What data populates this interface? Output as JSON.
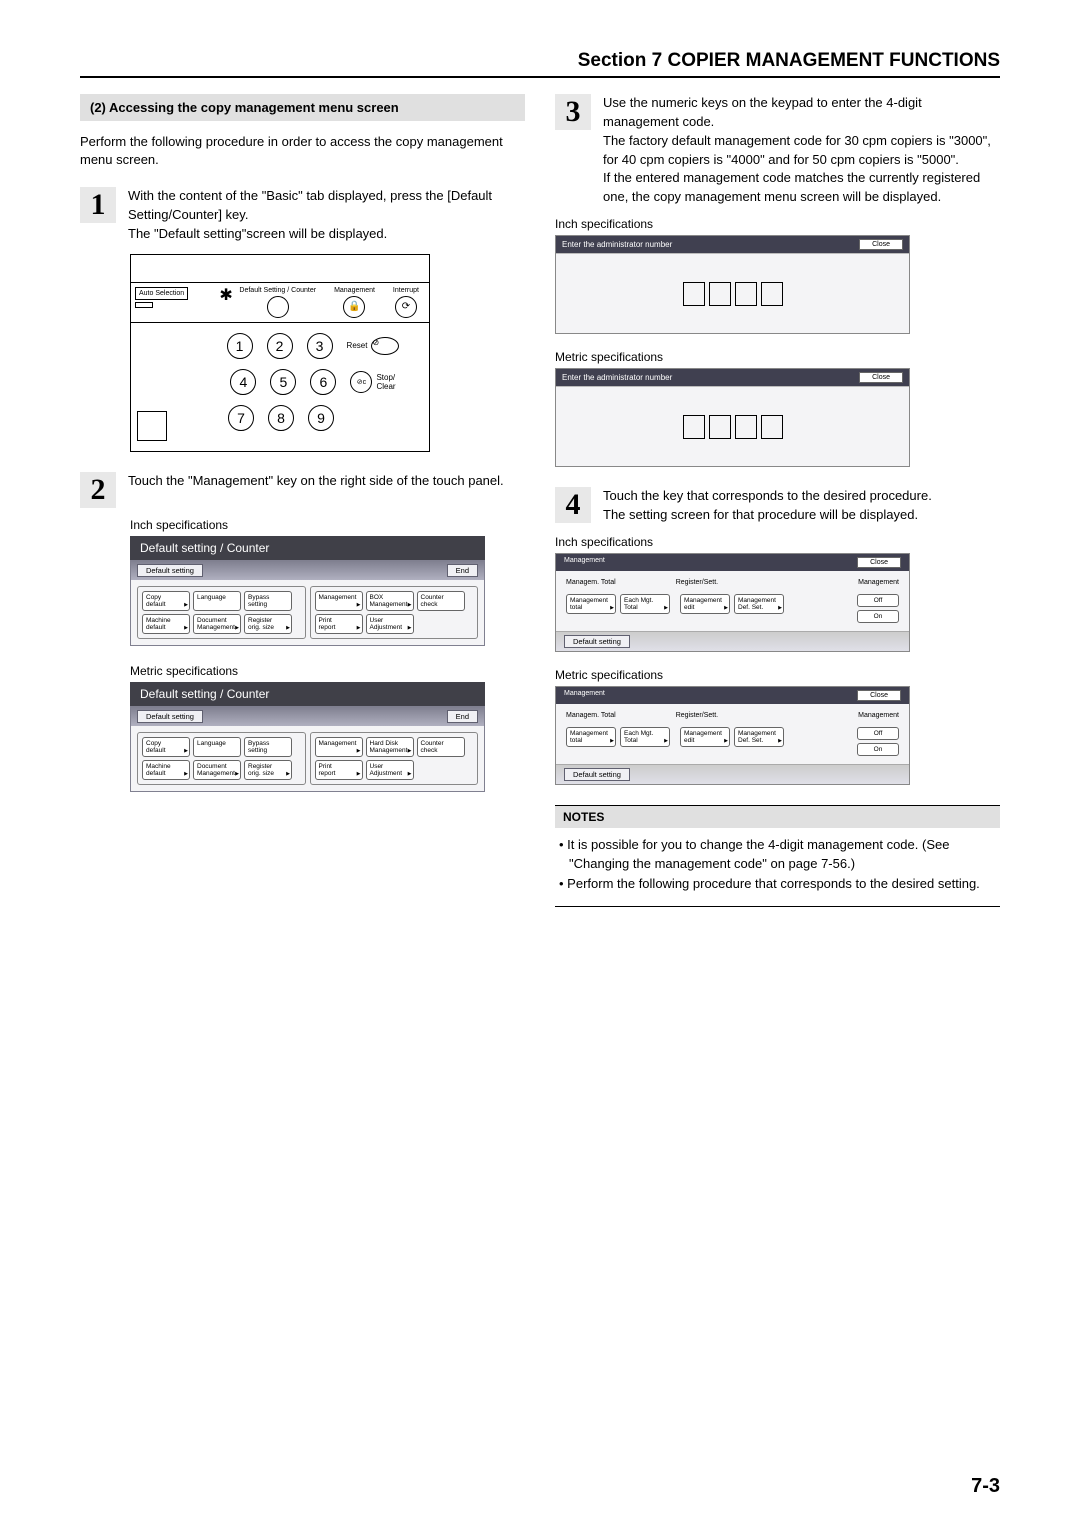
{
  "section_header": "Section 7  COPIER MANAGEMENT FUNCTIONS",
  "subheading": "(2)  Accessing the copy management menu screen",
  "intro": "Perform the following procedure in order to access the copy management menu screen.",
  "step1": {
    "num": "1",
    "line1": "With the content of the \"Basic\" tab displayed, press the [Default Setting/Counter] key.",
    "line2": "The \"Default setting\"screen will be displayed."
  },
  "keypad": {
    "auto_selection": "Auto Selection",
    "default_counter": "Default Setting / Counter",
    "management": "Management",
    "interrupt": "Interrupt",
    "reset": "Reset",
    "stop_clear": "Stop/\nClear",
    "keys": [
      "1",
      "2",
      "3",
      "4",
      "5",
      "6",
      "7",
      "8",
      "9"
    ]
  },
  "step2": {
    "num": "2",
    "text": "Touch the \"Management\" key on the right side of the touch panel."
  },
  "inch_label": "Inch specifications",
  "metric_label": "Metric specifications",
  "ds_panel": {
    "title": "Default setting / Counter",
    "tab": "Default setting",
    "end": "End",
    "buttons_left": [
      {
        "t": "Copy\ndefault",
        "a": true
      },
      {
        "t": "Language",
        "a": false
      },
      {
        "t": "Bypass\nsetting",
        "a": false
      },
      {
        "t": "Machine\ndefault",
        "a": true
      },
      {
        "t": "Document\nManagement",
        "a": true
      },
      {
        "t": "Register\norig. size",
        "a": true
      }
    ],
    "buttons_right": [
      {
        "t": "Management",
        "a": true
      },
      {
        "t": "BOX\nManagement",
        "a": true
      },
      {
        "t": "Counter\ncheck",
        "a": false
      },
      {
        "t": "Print\nreport",
        "a": true
      },
      {
        "t": "User\nAdjustment",
        "a": true
      }
    ],
    "buttons_right_metric": [
      {
        "t": "Management",
        "a": true
      },
      {
        "t": "Hard Disk\nManagement",
        "a": true
      },
      {
        "t": "Counter\ncheck",
        "a": false
      },
      {
        "t": "Print\nreport",
        "a": true
      },
      {
        "t": "User\nAdjustment",
        "a": true
      }
    ]
  },
  "step3": {
    "num": "3",
    "p1": "Use the numeric keys on the keypad to enter the 4-digit management code.",
    "p2": "The factory default management code for 30 cpm copiers is \"3000\", for 40 cpm copiers is \"4000\" and for 50 cpm copiers is \"5000\".",
    "p3": "If the entered management code matches the currently registered one, the copy management menu screen will be displayed."
  },
  "admin": {
    "prompt": "Enter the administrator number",
    "close": "Close"
  },
  "step4": {
    "num": "4",
    "line1": "Touch the key that corresponds to the desired procedure.",
    "line2": "The setting screen for that procedure will be displayed."
  },
  "mgmt": {
    "title": "Management",
    "close": "Close",
    "col1": "Managem. Total",
    "col2": "Register/Sett.",
    "col3": "Management",
    "b1": "Management\ntotal",
    "b2": "Each Mgt.\nTotal",
    "b3": "Management\nedit",
    "b4": "Management\nDef. Set.",
    "off": "Off",
    "on": "On",
    "bottom": "Default setting"
  },
  "notes": {
    "heading": "NOTES",
    "n1": "It is possible for you to change the 4-digit management code. (See \"Changing the management code\" on page 7-56.)",
    "n2": "Perform the following procedure that corresponds to the desired setting."
  },
  "page_num": "7-3"
}
